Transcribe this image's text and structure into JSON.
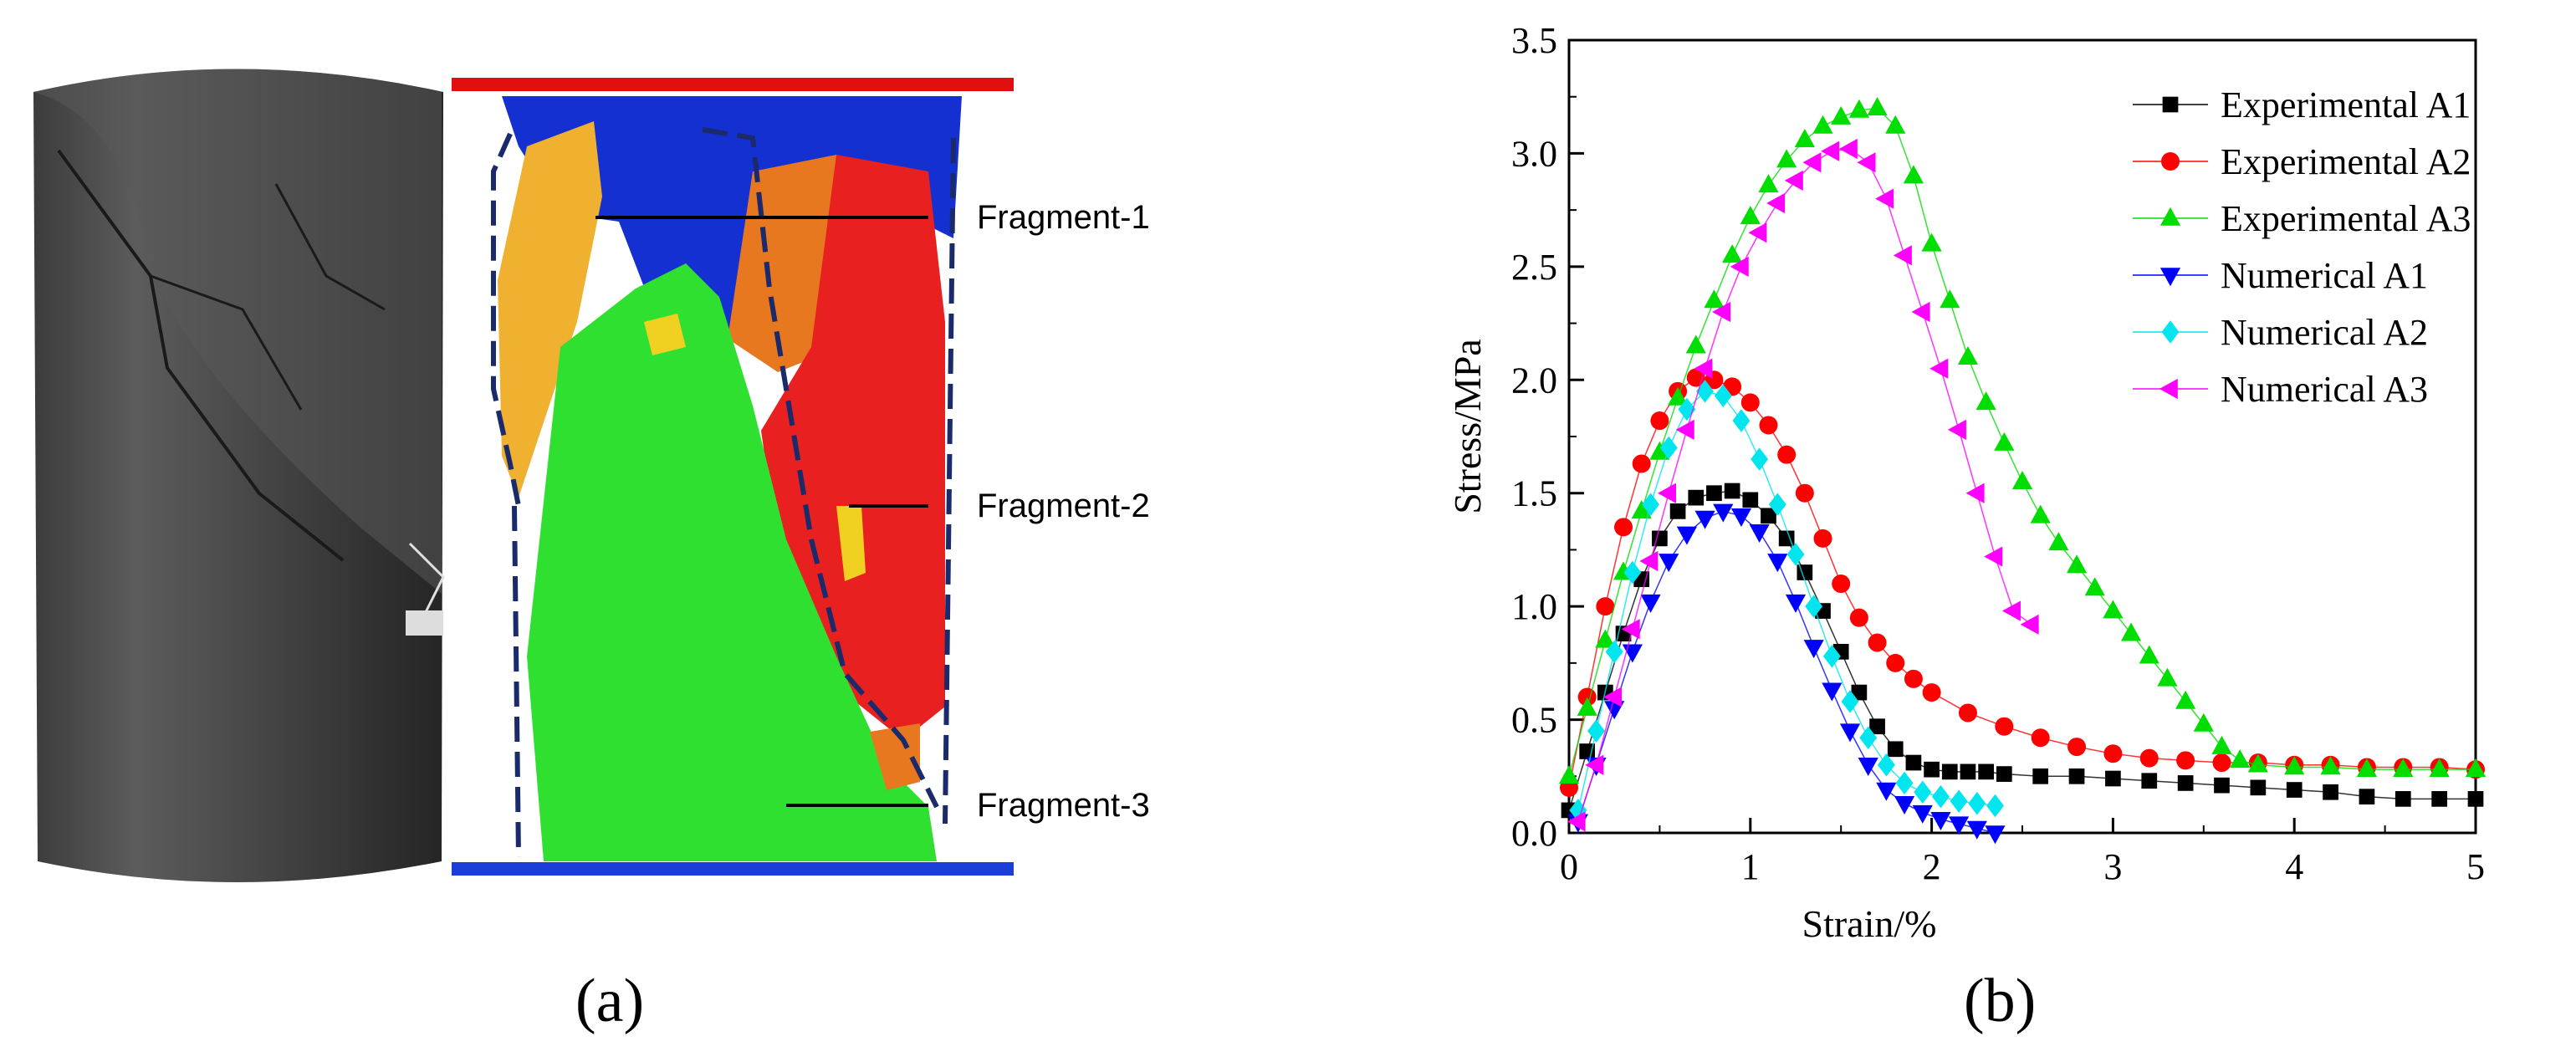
{
  "panel_a": {
    "label": "(a)",
    "fragments": [
      "Fragment-1",
      "Fragment-2",
      "Fragment-3"
    ]
  },
  "panel_b": {
    "label": "(b)"
  },
  "colors": {
    "experimental_a1": "#000000",
    "experimental_a2": "#ff0000",
    "experimental_a3": "#00dd00",
    "numerical_a1": "#0000ff",
    "numerical_a2": "#00e5ee",
    "numerical_a3": "#ff00ff",
    "fragment_1": "#f0b030",
    "fragment_2": "#e82020",
    "fragment_3": "#30e030",
    "matrix_blue": "#1530d0",
    "orange": "#e87820"
  },
  "chart_data": {
    "type": "scatter",
    "title": "",
    "xlabel": "Strain/%",
    "ylabel": "Stress/MPa",
    "xlim": [
      0,
      5
    ],
    "ylim": [
      0,
      3.5
    ],
    "xticks": [
      "0",
      "1",
      "2",
      "3",
      "4",
      "5"
    ],
    "yticks": [
      "0.0",
      "0.5",
      "1.0",
      "1.5",
      "2.0",
      "2.5",
      "3.0",
      "3.5"
    ],
    "legend_position": "top-right",
    "series": [
      {
        "name": "Experimental A1",
        "marker": "square",
        "color": "#000000",
        "x": [
          0.0,
          0.1,
          0.2,
          0.3,
          0.4,
          0.5,
          0.6,
          0.7,
          0.8,
          0.9,
          1.0,
          1.1,
          1.2,
          1.3,
          1.4,
          1.5,
          1.6,
          1.7,
          1.8,
          1.9,
          2.0,
          2.1,
          2.2,
          2.3,
          2.4,
          2.6,
          2.8,
          3.0,
          3.2,
          3.4,
          3.6,
          3.8,
          4.0,
          4.2,
          4.4,
          4.6,
          4.8,
          5.0
        ],
        "y": [
          0.1,
          0.36,
          0.62,
          0.88,
          1.12,
          1.3,
          1.42,
          1.48,
          1.5,
          1.51,
          1.47,
          1.4,
          1.3,
          1.15,
          0.98,
          0.8,
          0.62,
          0.47,
          0.37,
          0.31,
          0.28,
          0.27,
          0.27,
          0.27,
          0.26,
          0.25,
          0.25,
          0.24,
          0.23,
          0.22,
          0.21,
          0.2,
          0.19,
          0.18,
          0.16,
          0.15,
          0.15,
          0.15
        ]
      },
      {
        "name": "Experimental A2",
        "marker": "circle",
        "color": "#ff0000",
        "x": [
          0.0,
          0.1,
          0.2,
          0.3,
          0.4,
          0.5,
          0.6,
          0.7,
          0.8,
          0.9,
          1.0,
          1.1,
          1.2,
          1.3,
          1.4,
          1.5,
          1.6,
          1.7,
          1.8,
          1.9,
          2.0,
          2.2,
          2.4,
          2.6,
          2.8,
          3.0,
          3.2,
          3.4,
          3.6,
          3.8,
          4.0,
          4.2,
          4.4,
          4.6,
          4.8,
          5.0
        ],
        "y": [
          0.2,
          0.6,
          1.0,
          1.35,
          1.63,
          1.82,
          1.95,
          2.01,
          2.0,
          1.97,
          1.9,
          1.8,
          1.67,
          1.5,
          1.3,
          1.1,
          0.95,
          0.84,
          0.75,
          0.68,
          0.62,
          0.53,
          0.47,
          0.42,
          0.38,
          0.35,
          0.33,
          0.32,
          0.31,
          0.31,
          0.3,
          0.3,
          0.29,
          0.29,
          0.29,
          0.28
        ]
      },
      {
        "name": "Experimental A3",
        "marker": "triangle-up",
        "color": "#00dd00",
        "x": [
          0.0,
          0.1,
          0.2,
          0.3,
          0.4,
          0.5,
          0.6,
          0.7,
          0.8,
          0.9,
          1.0,
          1.1,
          1.2,
          1.3,
          1.4,
          1.5,
          1.6,
          1.7,
          1.8,
          1.9,
          2.0,
          2.1,
          2.2,
          2.3,
          2.4,
          2.5,
          2.6,
          2.7,
          2.8,
          2.9,
          3.0,
          3.1,
          3.2,
          3.3,
          3.4,
          3.5,
          3.6,
          3.7,
          3.8,
          4.0,
          4.2,
          4.4,
          4.6,
          4.8,
          5.0
        ],
        "y": [
          0.25,
          0.55,
          0.85,
          1.15,
          1.42,
          1.68,
          1.92,
          2.15,
          2.35,
          2.55,
          2.72,
          2.86,
          2.97,
          3.06,
          3.12,
          3.16,
          3.19,
          3.2,
          3.12,
          2.9,
          2.6,
          2.35,
          2.1,
          1.9,
          1.72,
          1.55,
          1.4,
          1.28,
          1.18,
          1.08,
          0.98,
          0.88,
          0.78,
          0.68,
          0.58,
          0.48,
          0.38,
          0.32,
          0.3,
          0.29,
          0.29,
          0.28,
          0.28,
          0.28,
          0.28
        ]
      },
      {
        "name": "Numerical A1",
        "marker": "triangle-down",
        "color": "#0000ff",
        "x": [
          0.05,
          0.15,
          0.25,
          0.35,
          0.45,
          0.55,
          0.65,
          0.75,
          0.85,
          0.95,
          1.05,
          1.15,
          1.25,
          1.35,
          1.45,
          1.55,
          1.65,
          1.75,
          1.85,
          1.95,
          2.05,
          2.15,
          2.25,
          2.35
        ],
        "y": [
          0.05,
          0.3,
          0.55,
          0.8,
          1.02,
          1.2,
          1.32,
          1.39,
          1.42,
          1.4,
          1.33,
          1.2,
          1.02,
          0.82,
          0.63,
          0.45,
          0.3,
          0.19,
          0.13,
          0.09,
          0.06,
          0.04,
          0.02,
          0.0
        ]
      },
      {
        "name": "Numerical A2",
        "marker": "diamond",
        "color": "#00e5ee",
        "x": [
          0.05,
          0.15,
          0.25,
          0.35,
          0.45,
          0.55,
          0.65,
          0.75,
          0.85,
          0.95,
          1.05,
          1.15,
          1.25,
          1.35,
          1.45,
          1.55,
          1.65,
          1.75,
          1.85,
          1.95,
          2.05,
          2.15,
          2.25,
          2.35
        ],
        "y": [
          0.1,
          0.45,
          0.8,
          1.15,
          1.45,
          1.7,
          1.87,
          1.95,
          1.93,
          1.82,
          1.65,
          1.45,
          1.23,
          1.0,
          0.78,
          0.58,
          0.42,
          0.3,
          0.22,
          0.18,
          0.16,
          0.14,
          0.13,
          0.12
        ]
      },
      {
        "name": "Numerical A3",
        "marker": "triangle-left",
        "color": "#ff00ff",
        "x": [
          0.05,
          0.15,
          0.25,
          0.35,
          0.45,
          0.55,
          0.65,
          0.75,
          0.85,
          0.95,
          1.05,
          1.15,
          1.25,
          1.35,
          1.45,
          1.55,
          1.65,
          1.75,
          1.85,
          1.95,
          2.05,
          2.15,
          2.25,
          2.35,
          2.45,
          2.55
        ],
        "y": [
          0.05,
          0.3,
          0.6,
          0.9,
          1.2,
          1.5,
          1.78,
          2.05,
          2.3,
          2.5,
          2.65,
          2.78,
          2.88,
          2.96,
          3.01,
          3.02,
          2.96,
          2.8,
          2.55,
          2.3,
          2.05,
          1.78,
          1.5,
          1.22,
          0.98,
          0.92
        ]
      }
    ]
  }
}
